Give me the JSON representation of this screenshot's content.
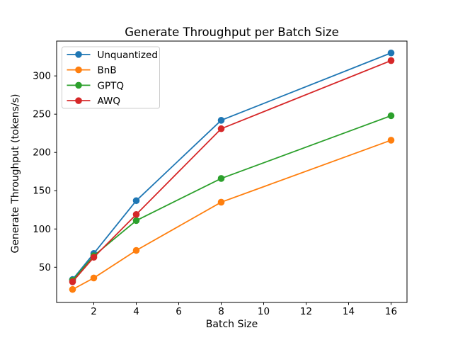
{
  "figure": {
    "background": "#ffffff",
    "axis_color": "#000000",
    "text_color": "#000000",
    "legend_border_color": "#cccccc",
    "legend_background": "#ffffff"
  },
  "chart_data": {
    "type": "line",
    "title": "Generate Throughput per Batch Size",
    "xlabel": "Batch Size",
    "ylabel": "Generate Throughput (tokens/s)",
    "x": [
      1,
      2,
      4,
      8,
      16
    ],
    "series": [
      {
        "name": "Unquantized",
        "color": "#1f77b4",
        "values": [
          34,
          68,
          137,
          242,
          330
        ]
      },
      {
        "name": "BnB",
        "color": "#ff7f0e",
        "values": [
          21,
          36,
          72,
          135,
          216
        ]
      },
      {
        "name": "GPTQ",
        "color": "#2ca02c",
        "values": [
          33,
          65,
          111,
          166,
          248
        ]
      },
      {
        "name": "AWQ",
        "color": "#d62728",
        "values": [
          31,
          63,
          119,
          231,
          320
        ]
      }
    ],
    "xlim": [
      0.25,
      16.75
    ],
    "ylim": [
      4,
      345.5
    ],
    "xticks": [
      2,
      4,
      6,
      8,
      10,
      12,
      14,
      16
    ],
    "yticks": [
      50,
      100,
      150,
      200,
      250,
      300
    ],
    "legend_position": "upper-left",
    "grid": false,
    "marker": "circle"
  }
}
